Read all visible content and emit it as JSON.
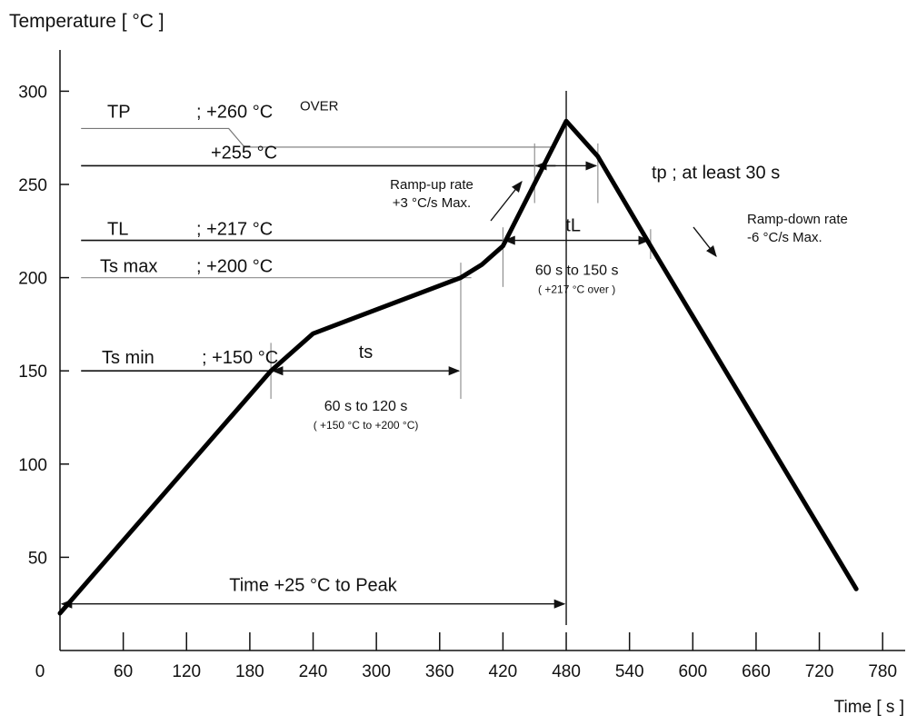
{
  "chart_data": {
    "type": "line",
    "ylabel": "Temperature [ °C ]",
    "xlabel": "Time [ s ]",
    "xlim": [
      0,
      790
    ],
    "ylim": [
      0,
      320
    ],
    "x_ticks": [
      0,
      60,
      120,
      180,
      240,
      300,
      360,
      420,
      480,
      540,
      600,
      660,
      720,
      780
    ],
    "y_ticks": [
      50,
      100,
      150,
      200,
      250,
      300
    ],
    "series": [
      {
        "x": [
          0,
          200,
          240,
          380,
          400,
          420,
          480,
          510,
          560,
          755
        ],
        "y": [
          20,
          150,
          170,
          200,
          207,
          217,
          284,
          265,
          217,
          33
        ]
      }
    ],
    "reference_lines": [
      {
        "name": "TP",
        "label": "TP",
        "value_label": "; +260 °C",
        "suffix": "OVER",
        "x": [
          20,
          160,
          175,
          470
        ],
        "y": [
          280,
          280,
          270,
          270
        ]
      },
      {
        "name": "255",
        "value_label": "+255 °C",
        "x": [
          20,
          470
        ],
        "y": [
          260,
          260
        ]
      },
      {
        "name": "TL",
        "label": "TL",
        "value_label": "; +217 °C",
        "x": [
          20,
          420
        ],
        "y": [
          220,
          220
        ]
      },
      {
        "name": "Tsmax",
        "label": "Ts max",
        "value_label": "; +200 °C",
        "x": [
          20,
          390
        ],
        "y": [
          200,
          200
        ]
      },
      {
        "name": "Tsmin",
        "label": "Ts min",
        "value_label": "; +150 °C",
        "x": [
          20,
          200
        ],
        "y": [
          150,
          150
        ]
      }
    ],
    "intervals": [
      {
        "name": "ts",
        "label": "ts",
        "detail": "60 s  to  120 s",
        "subdetail": "( +150 °C to +200 °C)",
        "x0": 200,
        "x1": 380,
        "y": 150
      },
      {
        "name": "tL",
        "label": "tL",
        "detail": "60 s  to  150 s",
        "subdetail": "( +217 °C  over )",
        "x0": 420,
        "x1": 560,
        "y": 220
      },
      {
        "name": "tp",
        "label": "tp ; at least 30 s",
        "x0": 450,
        "x1": 510,
        "y": 260
      },
      {
        "name": "to-peak",
        "label": "Time +25 °C to Peak",
        "x0": 0,
        "x1": 480,
        "y": 25
      }
    ],
    "annotations": {
      "ramp_up": [
        "Ramp-up rate",
        "+3 °C/s Max."
      ],
      "ramp_down": [
        "Ramp-down rate",
        "-6 °C/s Max."
      ]
    },
    "peak_x": 480,
    "grid": false,
    "legend": "none"
  }
}
